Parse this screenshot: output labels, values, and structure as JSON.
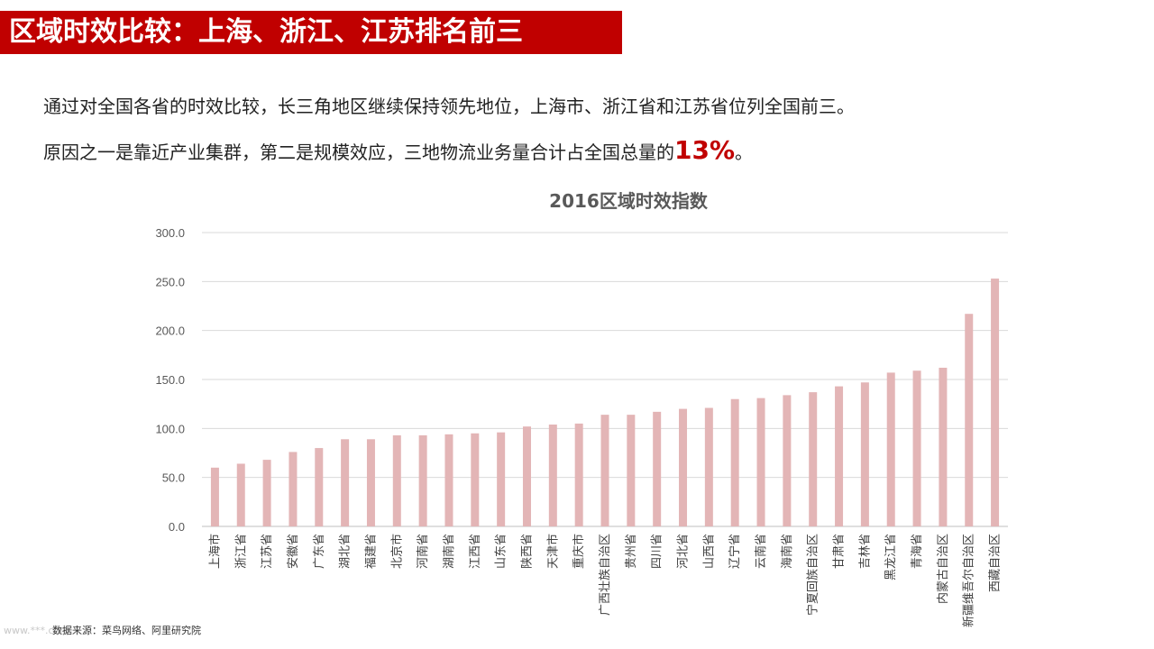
{
  "title": "区域时效比较：上海、浙江、江苏排名前三",
  "paragraph": {
    "line1": "通过对全国各省的时效比较，长三角地区继续保持领先地位，上海市、浙江省和江苏省位列全国前三。",
    "line2_prefix": "原因之一是靠近产业集群，第二是规模效应，三地物流业务量合计占全国总量的",
    "highlight": "13%",
    "line2_suffix": "。"
  },
  "source": "数据来源：菜鸟网络、阿里研究院",
  "watermark": "www.***.com",
  "colors": {
    "accent": "#c00000",
    "bar": "#e3b5b6",
    "grid": "#d9d9d9",
    "axis_text": "#595959"
  },
  "chart_data": {
    "type": "bar",
    "title": "2016区域时效指数",
    "xlabel": "",
    "ylabel": "",
    "ylim": [
      0,
      300
    ],
    "yticks": [
      "0.0",
      "50.0",
      "100.0",
      "150.0",
      "200.0",
      "250.0",
      "300.0"
    ],
    "grid": true,
    "legend": "none",
    "categories": [
      "上海市",
      "浙江省",
      "江苏省",
      "安徽省",
      "广东省",
      "湖北省",
      "福建省",
      "北京市",
      "河南省",
      "湖南省",
      "江西省",
      "山东省",
      "陕西省",
      "天津市",
      "重庆市",
      "广西壮族自治区",
      "贵州省",
      "四川省",
      "河北省",
      "山西省",
      "辽宁省",
      "云南省",
      "海南省",
      "宁夏回族自治区",
      "甘肃省",
      "吉林省",
      "黑龙江省",
      "青海省",
      "内蒙古自治区",
      "新疆维吾尔自治区",
      "西藏自治区"
    ],
    "values": [
      60,
      64,
      68,
      76,
      80,
      89,
      89,
      93,
      93,
      94,
      95,
      96,
      102,
      104,
      105,
      114,
      114,
      117,
      120,
      121,
      130,
      131,
      134,
      137,
      143,
      147,
      157,
      159,
      162,
      217,
      253
    ]
  }
}
